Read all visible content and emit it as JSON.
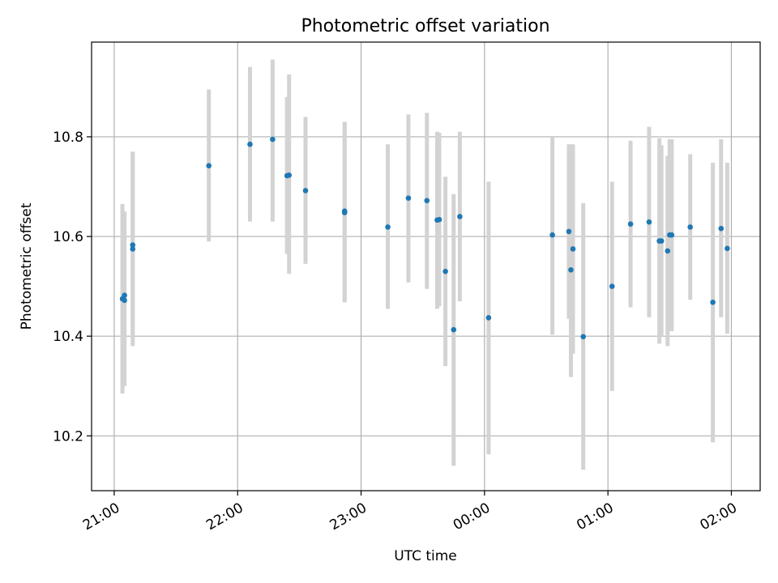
{
  "chart_data": {
    "type": "scatter",
    "title": "Photometric offset variation",
    "xlabel": "UTC time",
    "ylabel": "Photometric offset",
    "grid": true,
    "x_unit": "UTC time (HH:MM)",
    "xlim": [
      "20:49",
      "02:14"
    ],
    "ylim": [
      10.09,
      10.99
    ],
    "x_ticks": [
      "21:00",
      "22:00",
      "23:00",
      "00:00",
      "01:00",
      "02:00"
    ],
    "y_ticks": [
      "10.2",
      "10.4",
      "10.6",
      "10.8"
    ],
    "colors": {
      "point": "#1f77b4",
      "error_bar": "#d3d3d3"
    },
    "series": [
      {
        "points": [
          {
            "time": "21:04",
            "y": 10.475,
            "err_low": 10.285,
            "err_high": 10.665
          },
          {
            "time": "21:05",
            "y": 10.472,
            "err_low": 10.3,
            "err_high": 10.65
          },
          {
            "time": "21:05",
            "y": 10.482,
            "err_low": 10.32,
            "err_high": 10.645
          },
          {
            "time": "21:09",
            "y": 10.575,
            "err_low": 10.38,
            "err_high": 10.77
          },
          {
            "time": "21:09",
            "y": 10.583,
            "err_low": 10.395,
            "err_high": 10.77
          },
          {
            "time": "21:46",
            "y": 10.742,
            "err_low": 10.59,
            "err_high": 10.895
          },
          {
            "time": "22:06",
            "y": 10.785,
            "err_low": 10.63,
            "err_high": 10.94
          },
          {
            "time": "22:17",
            "y": 10.795,
            "err_low": 10.63,
            "err_high": 10.955
          },
          {
            "time": "22:24",
            "y": 10.722,
            "err_low": 10.565,
            "err_high": 10.88
          },
          {
            "time": "22:25",
            "y": 10.723,
            "err_low": 10.525,
            "err_high": 10.925
          },
          {
            "time": "22:33",
            "y": 10.692,
            "err_low": 10.545,
            "err_high": 10.84
          },
          {
            "time": "22:52",
            "y": 10.648,
            "err_low": 10.468,
            "err_high": 10.83
          },
          {
            "time": "22:52",
            "y": 10.651,
            "err_low": 10.47,
            "err_high": 10.828
          },
          {
            "time": "23:13",
            "y": 10.619,
            "err_low": 10.455,
            "err_high": 10.785
          },
          {
            "time": "23:23",
            "y": 10.677,
            "err_low": 10.508,
            "err_high": 10.845
          },
          {
            "time": "23:32",
            "y": 10.672,
            "err_low": 10.495,
            "err_high": 10.848
          },
          {
            "time": "23:37",
            "y": 10.633,
            "err_low": 10.455,
            "err_high": 10.81
          },
          {
            "time": "23:38",
            "y": 10.634,
            "err_low": 10.46,
            "err_high": 10.808
          },
          {
            "time": "23:41",
            "y": 10.53,
            "err_low": 10.34,
            "err_high": 10.72
          },
          {
            "time": "23:45",
            "y": 10.413,
            "err_low": 10.14,
            "err_high": 10.685
          },
          {
            "time": "23:48",
            "y": 10.64,
            "err_low": 10.47,
            "err_high": 10.81
          },
          {
            "time": "00:02",
            "y": 10.437,
            "err_low": 10.163,
            "err_high": 10.71
          },
          {
            "time": "00:33",
            "y": 10.603,
            "err_low": 10.403,
            "err_high": 10.8
          },
          {
            "time": "00:41",
            "y": 10.61,
            "err_low": 10.435,
            "err_high": 10.785
          },
          {
            "time": "00:42",
            "y": 10.533,
            "err_low": 10.318,
            "err_high": 10.785
          },
          {
            "time": "00:43",
            "y": 10.575,
            "err_low": 10.365,
            "err_high": 10.785
          },
          {
            "time": "00:48",
            "y": 10.399,
            "err_low": 10.132,
            "err_high": 10.667
          },
          {
            "time": "01:02",
            "y": 10.5,
            "err_low": 10.29,
            "err_high": 10.71
          },
          {
            "time": "01:11",
            "y": 10.625,
            "err_low": 10.458,
            "err_high": 10.792
          },
          {
            "time": "01:20",
            "y": 10.629,
            "err_low": 10.438,
            "err_high": 10.82
          },
          {
            "time": "01:25",
            "y": 10.591,
            "err_low": 10.385,
            "err_high": 10.797
          },
          {
            "time": "01:26",
            "y": 10.591,
            "err_low": 10.4,
            "err_high": 10.783
          },
          {
            "time": "01:29",
            "y": 10.571,
            "err_low": 10.38,
            "err_high": 10.762
          },
          {
            "time": "01:30",
            "y": 10.603,
            "err_low": 10.41,
            "err_high": 10.795
          },
          {
            "time": "01:31",
            "y": 10.603,
            "err_low": 10.41,
            "err_high": 10.795
          },
          {
            "time": "01:40",
            "y": 10.619,
            "err_low": 10.473,
            "err_high": 10.765
          },
          {
            "time": "01:51",
            "y": 10.468,
            "err_low": 10.187,
            "err_high": 10.748
          },
          {
            "time": "01:55",
            "y": 10.616,
            "err_low": 10.438,
            "err_high": 10.795
          },
          {
            "time": "01:58",
            "y": 10.576,
            "err_low": 10.405,
            "err_high": 10.748
          }
        ]
      }
    ]
  }
}
